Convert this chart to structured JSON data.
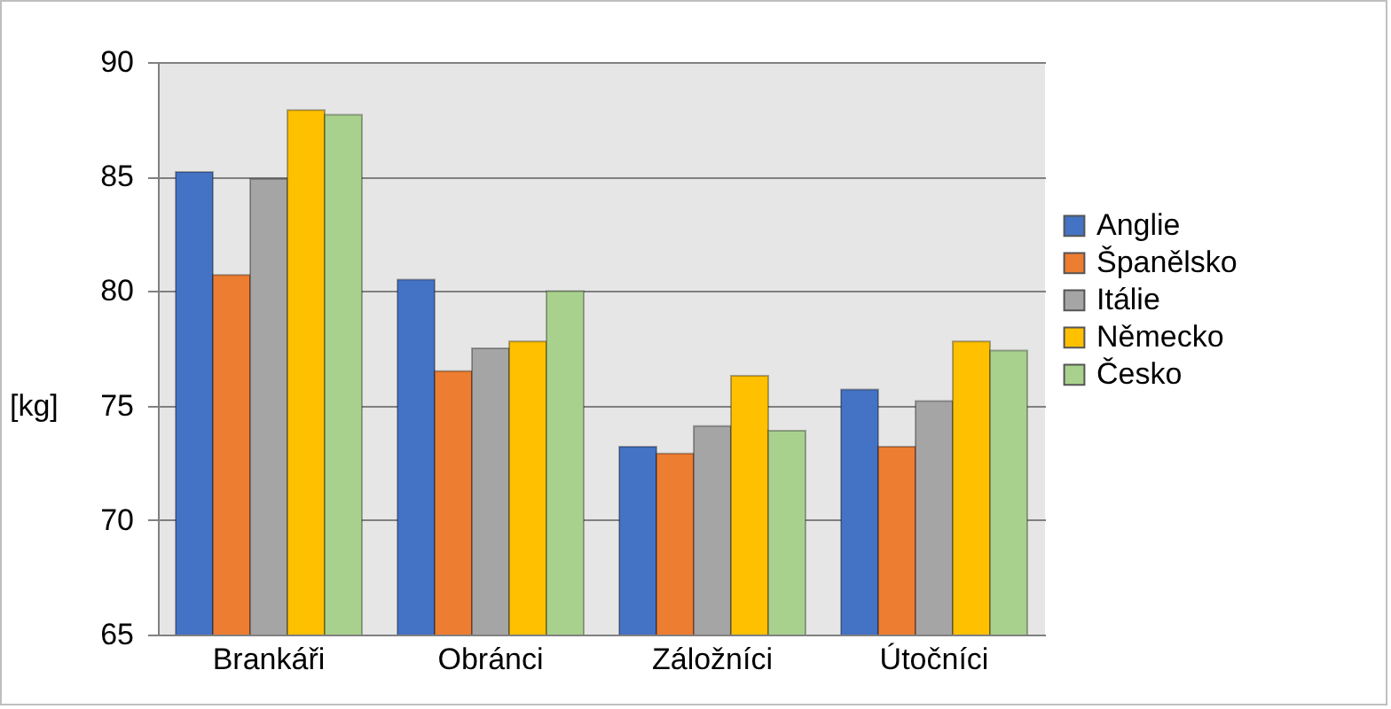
{
  "chart_data": {
    "type": "bar",
    "ylabel": "[kg]",
    "categories": [
      "Brankáři",
      "Obránci",
      "Záložníci",
      "Útočníci"
    ],
    "series": [
      {
        "name": "Anglie",
        "color": "#4472c4",
        "values": [
          85.2,
          80.5,
          73.2,
          75.7
        ]
      },
      {
        "name": "Španělsko",
        "color": "#ed7d31",
        "values": [
          80.7,
          76.5,
          72.9,
          73.2
        ]
      },
      {
        "name": "Itálie",
        "color": "#a5a5a5",
        "values": [
          84.9,
          77.5,
          74.1,
          75.2
        ]
      },
      {
        "name": "Německo",
        "color": "#ffc000",
        "values": [
          87.9,
          77.8,
          76.3,
          77.8
        ]
      },
      {
        "name": "Česko",
        "color": "#a9d18e",
        "values": [
          87.7,
          80.0,
          73.9,
          77.4
        ]
      }
    ],
    "ylim": [
      65,
      90
    ],
    "yticks": [
      65,
      70,
      75,
      80,
      85,
      90
    ],
    "grid": "y",
    "legend": "right"
  }
}
